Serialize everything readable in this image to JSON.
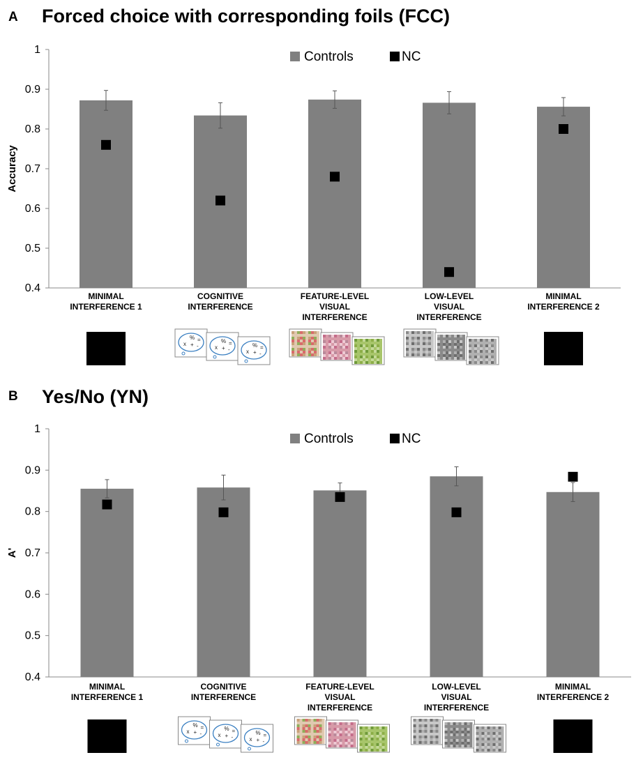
{
  "panels": [
    {
      "letter": "A",
      "title": "Forced choice with corresponding foils (FCC)",
      "chart_data": {
        "type": "bar",
        "categories": [
          [
            "MINIMAL",
            "INTERFERENCE 1"
          ],
          [
            "COGNITIVE",
            "INTERFERENCE"
          ],
          [
            "FEATURE-LEVEL",
            "VISUAL",
            "INTERFERENCE"
          ],
          [
            "LOW-LEVEL",
            "VISUAL",
            "INTERFERENCE"
          ],
          [
            "MINIMAL",
            "INTERFERENCE 2"
          ]
        ],
        "series": [
          {
            "name": "Controls",
            "kind": "bar",
            "color": "#808080",
            "values": [
              0.872,
              0.834,
              0.874,
              0.866,
              0.856
            ],
            "error": [
              0.025,
              0.032,
              0.022,
              0.028,
              0.023
            ]
          },
          {
            "name": "NC",
            "kind": "marker",
            "color": "#000000",
            "values": [
              0.76,
              0.62,
              0.68,
              0.44,
              0.8
            ]
          }
        ],
        "ylabel": "Accuracy",
        "ylim": [
          0.4,
          1.0
        ],
        "yticks": [
          "0.4",
          "0.5",
          "0.6",
          "0.7",
          "0.8",
          "0.9",
          "1"
        ],
        "legend_placement": "top-center",
        "grid": false,
        "stimulus_icons": [
          "black-square",
          "cognitive-cards",
          "feature-cards",
          "lowlevel-cards",
          "black-square"
        ]
      }
    },
    {
      "letter": "B",
      "title": "Yes/No (YN)",
      "chart_data": {
        "type": "bar",
        "categories": [
          [
            "MINIMAL",
            "INTERFERENCE 1"
          ],
          [
            "COGNITIVE",
            "INTERFERENCE"
          ],
          [
            "FEATURE-LEVEL",
            "VISUAL",
            "INTERFERENCE"
          ],
          [
            "LOW-LEVEL",
            "VISUAL",
            "INTERFERENCE"
          ],
          [
            "MINIMAL",
            "INTERFERENCE 2"
          ]
        ],
        "series": [
          {
            "name": "Controls",
            "kind": "bar",
            "color": "#808080",
            "values": [
              0.855,
              0.858,
              0.851,
              0.885,
              0.847
            ],
            "error": [
              0.022,
              0.03,
              0.018,
              0.023,
              0.023
            ]
          },
          {
            "name": "NC",
            "kind": "marker",
            "color": "#000000",
            "values": [
              0.817,
              0.798,
              0.835,
              0.798,
              0.884
            ]
          }
        ],
        "ylabel": "A'",
        "ylim": [
          0.4,
          1.0
        ],
        "yticks": [
          "0.4",
          "0.5",
          "0.6",
          "0.7",
          "0.8",
          "0.9",
          "1"
        ],
        "legend_placement": "top-center",
        "grid": false,
        "stimulus_icons": [
          "black-square",
          "cognitive-cards",
          "feature-cards",
          "lowlevel-cards",
          "black-square"
        ]
      }
    }
  ]
}
